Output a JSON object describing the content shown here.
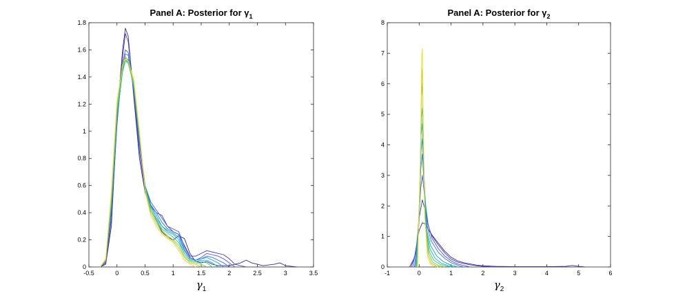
{
  "chart_data": [
    {
      "type": "line",
      "title": "Panel A: Posterior for γ",
      "title_subscript": "1",
      "xlabel": "γ",
      "xlabel_subscript": "1",
      "ylabel": "",
      "xlim": [
        -0.5,
        3.5
      ],
      "ylim": [
        0,
        1.8
      ],
      "xticks": [
        "-0.5",
        "0",
        "0.5",
        "1",
        "1.5",
        "2",
        "2.5",
        "3",
        "3.5"
      ],
      "yticks": [
        "0",
        "0.2",
        "0.4",
        "0.6",
        "0.8",
        "1",
        "1.2",
        "1.4",
        "1.6",
        "1.8"
      ],
      "grid": false,
      "legend": "none",
      "series": [
        {
          "color": "#3b2a8a",
          "x": [
            -0.3,
            -0.2,
            -0.1,
            0,
            0.1,
            0.15,
            0.2,
            0.3,
            0.4,
            0.5,
            0.6,
            0.7,
            0.8,
            0.9,
            1.0,
            1.1,
            1.2,
            1.3,
            1.4,
            1.5,
            1.6,
            1.7,
            1.8,
            2.0,
            2.2,
            2.3,
            2.4,
            2.6,
            2.8,
            2.9,
            3.0,
            3.2
          ],
          "y": [
            0,
            0.02,
            0.3,
            1.1,
            1.6,
            1.76,
            1.7,
            1.25,
            0.8,
            0.55,
            0.42,
            0.34,
            0.26,
            0.22,
            0.2,
            0.23,
            0.21,
            0.1,
            0.04,
            0.03,
            0.04,
            0.02,
            0.01,
            0.01,
            0.03,
            0.05,
            0.03,
            0.01,
            0.02,
            0.03,
            0.01,
            0
          ]
        },
        {
          "color": "#4338c7",
          "x": [
            -0.3,
            -0.2,
            -0.1,
            0,
            0.1,
            0.15,
            0.2,
            0.3,
            0.4,
            0.5,
            0.6,
            0.7,
            0.8,
            0.9,
            1.0,
            1.1,
            1.2,
            1.3,
            1.4,
            1.5,
            1.6,
            1.7,
            1.8,
            1.9,
            2.0,
            2.1,
            2.3
          ],
          "y": [
            0,
            0.03,
            0.35,
            1.05,
            1.55,
            1.72,
            1.66,
            1.28,
            0.85,
            0.57,
            0.45,
            0.4,
            0.38,
            0.3,
            0.26,
            0.24,
            0.16,
            0.08,
            0.08,
            0.1,
            0.12,
            0.11,
            0.1,
            0.09,
            0.06,
            0.02,
            0
          ]
        },
        {
          "color": "#4a54e8",
          "x": [
            -0.3,
            -0.2,
            -0.1,
            0,
            0.1,
            0.15,
            0.2,
            0.3,
            0.4,
            0.5,
            0.6,
            0.7,
            0.8,
            0.9,
            1.0,
            1.1,
            1.2,
            1.3,
            1.4,
            1.5,
            1.6,
            1.7,
            1.8,
            1.9,
            2.0,
            2.1
          ],
          "y": [
            0,
            0.04,
            0.4,
            1.05,
            1.5,
            1.6,
            1.58,
            1.3,
            0.9,
            0.6,
            0.48,
            0.42,
            0.36,
            0.3,
            0.28,
            0.26,
            0.15,
            0.07,
            0.05,
            0.07,
            0.1,
            0.09,
            0.08,
            0.06,
            0.03,
            0
          ]
        },
        {
          "color": "#2f74f4",
          "x": [
            -0.3,
            -0.2,
            -0.1,
            0,
            0.1,
            0.15,
            0.2,
            0.3,
            0.4,
            0.5,
            0.6,
            0.7,
            0.8,
            0.9,
            1.0,
            1.1,
            1.2,
            1.3,
            1.4,
            1.5,
            1.6,
            1.7,
            1.8,
            1.9,
            2.0
          ],
          "y": [
            0,
            0.04,
            0.42,
            1.08,
            1.48,
            1.57,
            1.56,
            1.3,
            0.92,
            0.6,
            0.46,
            0.4,
            0.33,
            0.28,
            0.26,
            0.24,
            0.13,
            0.06,
            0.05,
            0.06,
            0.08,
            0.07,
            0.05,
            0.03,
            0
          ]
        },
        {
          "color": "#1e96e0",
          "x": [
            -0.3,
            -0.2,
            -0.1,
            0,
            0.1,
            0.15,
            0.2,
            0.3,
            0.4,
            0.5,
            0.6,
            0.7,
            0.8,
            0.9,
            1.0,
            1.1,
            1.2,
            1.3,
            1.4,
            1.5,
            1.6,
            1.7,
            1.8,
            1.9
          ],
          "y": [
            0,
            0.05,
            0.45,
            1.1,
            1.45,
            1.54,
            1.53,
            1.32,
            0.94,
            0.6,
            0.45,
            0.38,
            0.3,
            0.27,
            0.25,
            0.22,
            0.12,
            0.06,
            0.05,
            0.06,
            0.07,
            0.05,
            0.03,
            0
          ]
        },
        {
          "color": "#15b1c4",
          "x": [
            -0.3,
            -0.2,
            -0.1,
            0,
            0.1,
            0.15,
            0.2,
            0.3,
            0.4,
            0.5,
            0.6,
            0.7,
            0.8,
            0.9,
            1.0,
            1.1,
            1.2,
            1.3,
            1.4,
            1.5,
            1.6,
            1.7,
            1.8
          ],
          "y": [
            0,
            0.05,
            0.46,
            1.12,
            1.44,
            1.52,
            1.51,
            1.33,
            0.95,
            0.6,
            0.44,
            0.36,
            0.3,
            0.26,
            0.24,
            0.2,
            0.1,
            0.05,
            0.04,
            0.05,
            0.05,
            0.03,
            0
          ]
        },
        {
          "color": "#2ac491",
          "x": [
            -0.3,
            -0.2,
            -0.1,
            0,
            0.1,
            0.15,
            0.2,
            0.3,
            0.4,
            0.5,
            0.6,
            0.7,
            0.8,
            0.9,
            1.0,
            1.1,
            1.2,
            1.3,
            1.4,
            1.5,
            1.6,
            1.7
          ],
          "y": [
            0,
            0.05,
            0.48,
            1.14,
            1.46,
            1.52,
            1.5,
            1.34,
            0.96,
            0.58,
            0.42,
            0.35,
            0.28,
            0.25,
            0.22,
            0.18,
            0.1,
            0.05,
            0.04,
            0.04,
            0.03,
            0
          ]
        },
        {
          "color": "#6fcd4e",
          "x": [
            -0.3,
            -0.2,
            -0.1,
            0,
            0.1,
            0.15,
            0.2,
            0.3,
            0.4,
            0.5,
            0.6,
            0.7,
            0.8,
            0.9,
            1.0,
            1.1,
            1.2,
            1.3,
            1.4,
            1.5,
            1.6
          ],
          "y": [
            0,
            0.05,
            0.5,
            1.16,
            1.48,
            1.53,
            1.51,
            1.35,
            0.97,
            0.58,
            0.42,
            0.34,
            0.27,
            0.23,
            0.2,
            0.16,
            0.08,
            0.04,
            0.03,
            0.02,
            0
          ]
        },
        {
          "color": "#bcc72a",
          "x": [
            -0.3,
            -0.2,
            -0.1,
            0,
            0.1,
            0.15,
            0.2,
            0.3,
            0.4,
            0.5,
            0.6,
            0.7,
            0.8,
            0.9,
            1.0,
            1.1,
            1.2,
            1.3,
            1.4,
            1.5
          ],
          "y": [
            0,
            0.05,
            0.52,
            1.2,
            1.5,
            1.55,
            1.52,
            1.36,
            0.98,
            0.57,
            0.4,
            0.32,
            0.25,
            0.22,
            0.19,
            0.14,
            0.07,
            0.03,
            0.02,
            0
          ]
        },
        {
          "color": "#f2d91a",
          "x": [
            -0.3,
            -0.2,
            -0.1,
            0,
            0.1,
            0.15,
            0.2,
            0.3,
            0.4,
            0.5,
            0.6,
            0.7,
            0.8,
            0.9,
            1.0,
            1.1,
            1.2,
            1.3,
            1.4
          ],
          "y": [
            0,
            0.06,
            0.55,
            1.22,
            1.48,
            1.53,
            1.52,
            1.38,
            1.0,
            0.56,
            0.38,
            0.3,
            0.24,
            0.21,
            0.18,
            0.12,
            0.05,
            0.02,
            0
          ]
        }
      ]
    },
    {
      "type": "line",
      "title": "Panel A: Posterior for γ",
      "title_subscript": "2",
      "xlabel": "γ",
      "xlabel_subscript": "2",
      "ylabel": "",
      "xlim": [
        -1,
        6
      ],
      "ylim": [
        0,
        8
      ],
      "xticks": [
        "-1",
        "0",
        "1",
        "2",
        "3",
        "4",
        "5",
        "6"
      ],
      "yticks": [
        "0",
        "1",
        "2",
        "3",
        "4",
        "5",
        "6",
        "7",
        "8"
      ],
      "grid": false,
      "legend": "none",
      "series": [
        {
          "color": "#3b2a8a",
          "x": [
            -0.3,
            -0.15,
            0,
            0.1,
            0.2,
            0.3,
            0.4,
            0.6,
            0.8,
            1.0,
            1.2,
            1.4,
            1.6,
            1.8,
            2.0,
            2.4,
            3.0,
            4.0,
            4.6,
            4.8,
            5.0,
            5.2
          ],
          "y": [
            0,
            0.3,
            1.2,
            1.45,
            1.4,
            1.2,
            1.05,
            0.78,
            0.52,
            0.32,
            0.2,
            0.14,
            0.1,
            0.06,
            0.04,
            0.02,
            0.01,
            0.01,
            0.02,
            0.05,
            0.02,
            0
          ]
        },
        {
          "color": "#4338c7",
          "x": [
            -0.25,
            -0.1,
            0,
            0.1,
            0.2,
            0.3,
            0.4,
            0.6,
            0.8,
            1.0,
            1.2,
            1.4,
            1.6,
            1.8,
            2.0,
            2.4
          ],
          "y": [
            0,
            0.5,
            1.6,
            2.2,
            1.8,
            1.3,
            1.02,
            0.72,
            0.46,
            0.26,
            0.16,
            0.11,
            0.07,
            0.04,
            0.02,
            0
          ]
        },
        {
          "color": "#4a54e8",
          "x": [
            -0.2,
            -0.05,
            0.05,
            0.1,
            0.18,
            0.28,
            0.4,
            0.6,
            0.8,
            1.0,
            1.2,
            1.4,
            1.6
          ],
          "y": [
            0,
            0.9,
            2.6,
            3.0,
            2.2,
            1.4,
            0.95,
            0.6,
            0.36,
            0.2,
            0.1,
            0.05,
            0
          ]
        },
        {
          "color": "#2f74f4",
          "x": [
            -0.15,
            -0.02,
            0.05,
            0.1,
            0.16,
            0.26,
            0.38,
            0.6,
            0.8,
            1.0,
            1.2,
            1.4
          ],
          "y": [
            0,
            1.2,
            3.2,
            3.7,
            2.6,
            1.3,
            0.85,
            0.48,
            0.28,
            0.14,
            0.06,
            0
          ]
        },
        {
          "color": "#1e96e0",
          "x": [
            -0.12,
            0,
            0.06,
            0.1,
            0.15,
            0.24,
            0.36,
            0.55,
            0.75,
            0.95,
            1.2
          ],
          "y": [
            0,
            1.5,
            3.8,
            4.2,
            3.0,
            1.2,
            0.7,
            0.36,
            0.18,
            0.08,
            0
          ]
        },
        {
          "color": "#15b1c4",
          "x": [
            -0.1,
            0,
            0.06,
            0.1,
            0.14,
            0.22,
            0.34,
            0.5,
            0.7,
            0.9,
            1.1
          ],
          "y": [
            0,
            1.8,
            4.3,
            4.7,
            3.4,
            1.2,
            0.6,
            0.28,
            0.12,
            0.05,
            0
          ]
        },
        {
          "color": "#2ac491",
          "x": [
            -0.08,
            0.02,
            0.07,
            0.1,
            0.13,
            0.2,
            0.32,
            0.46,
            0.65,
            0.85,
            1.0
          ],
          "y": [
            0,
            2.2,
            4.9,
            5.2,
            3.8,
            1.3,
            0.5,
            0.22,
            0.09,
            0.03,
            0
          ]
        },
        {
          "color": "#6fcd4e",
          "x": [
            -0.07,
            0.03,
            0.07,
            0.1,
            0.13,
            0.19,
            0.3,
            0.42,
            0.6,
            0.8
          ],
          "y": [
            0,
            2.7,
            5.6,
            6.0,
            4.2,
            1.4,
            0.45,
            0.16,
            0.05,
            0
          ]
        },
        {
          "color": "#bcc72a",
          "x": [
            -0.06,
            0.03,
            0.08,
            0.1,
            0.12,
            0.18,
            0.28,
            0.38,
            0.55,
            0.7
          ],
          "y": [
            0,
            3.1,
            6.2,
            6.5,
            4.8,
            1.6,
            0.4,
            0.12,
            0.03,
            0
          ]
        },
        {
          "color": "#f2d91a",
          "x": [
            -0.05,
            0.04,
            0.08,
            0.1,
            0.12,
            0.17,
            0.26,
            0.36,
            0.5,
            0.6
          ],
          "y": [
            0,
            3.5,
            6.9,
            7.15,
            5.2,
            1.8,
            0.35,
            0.08,
            0.02,
            0
          ]
        }
      ]
    }
  ]
}
